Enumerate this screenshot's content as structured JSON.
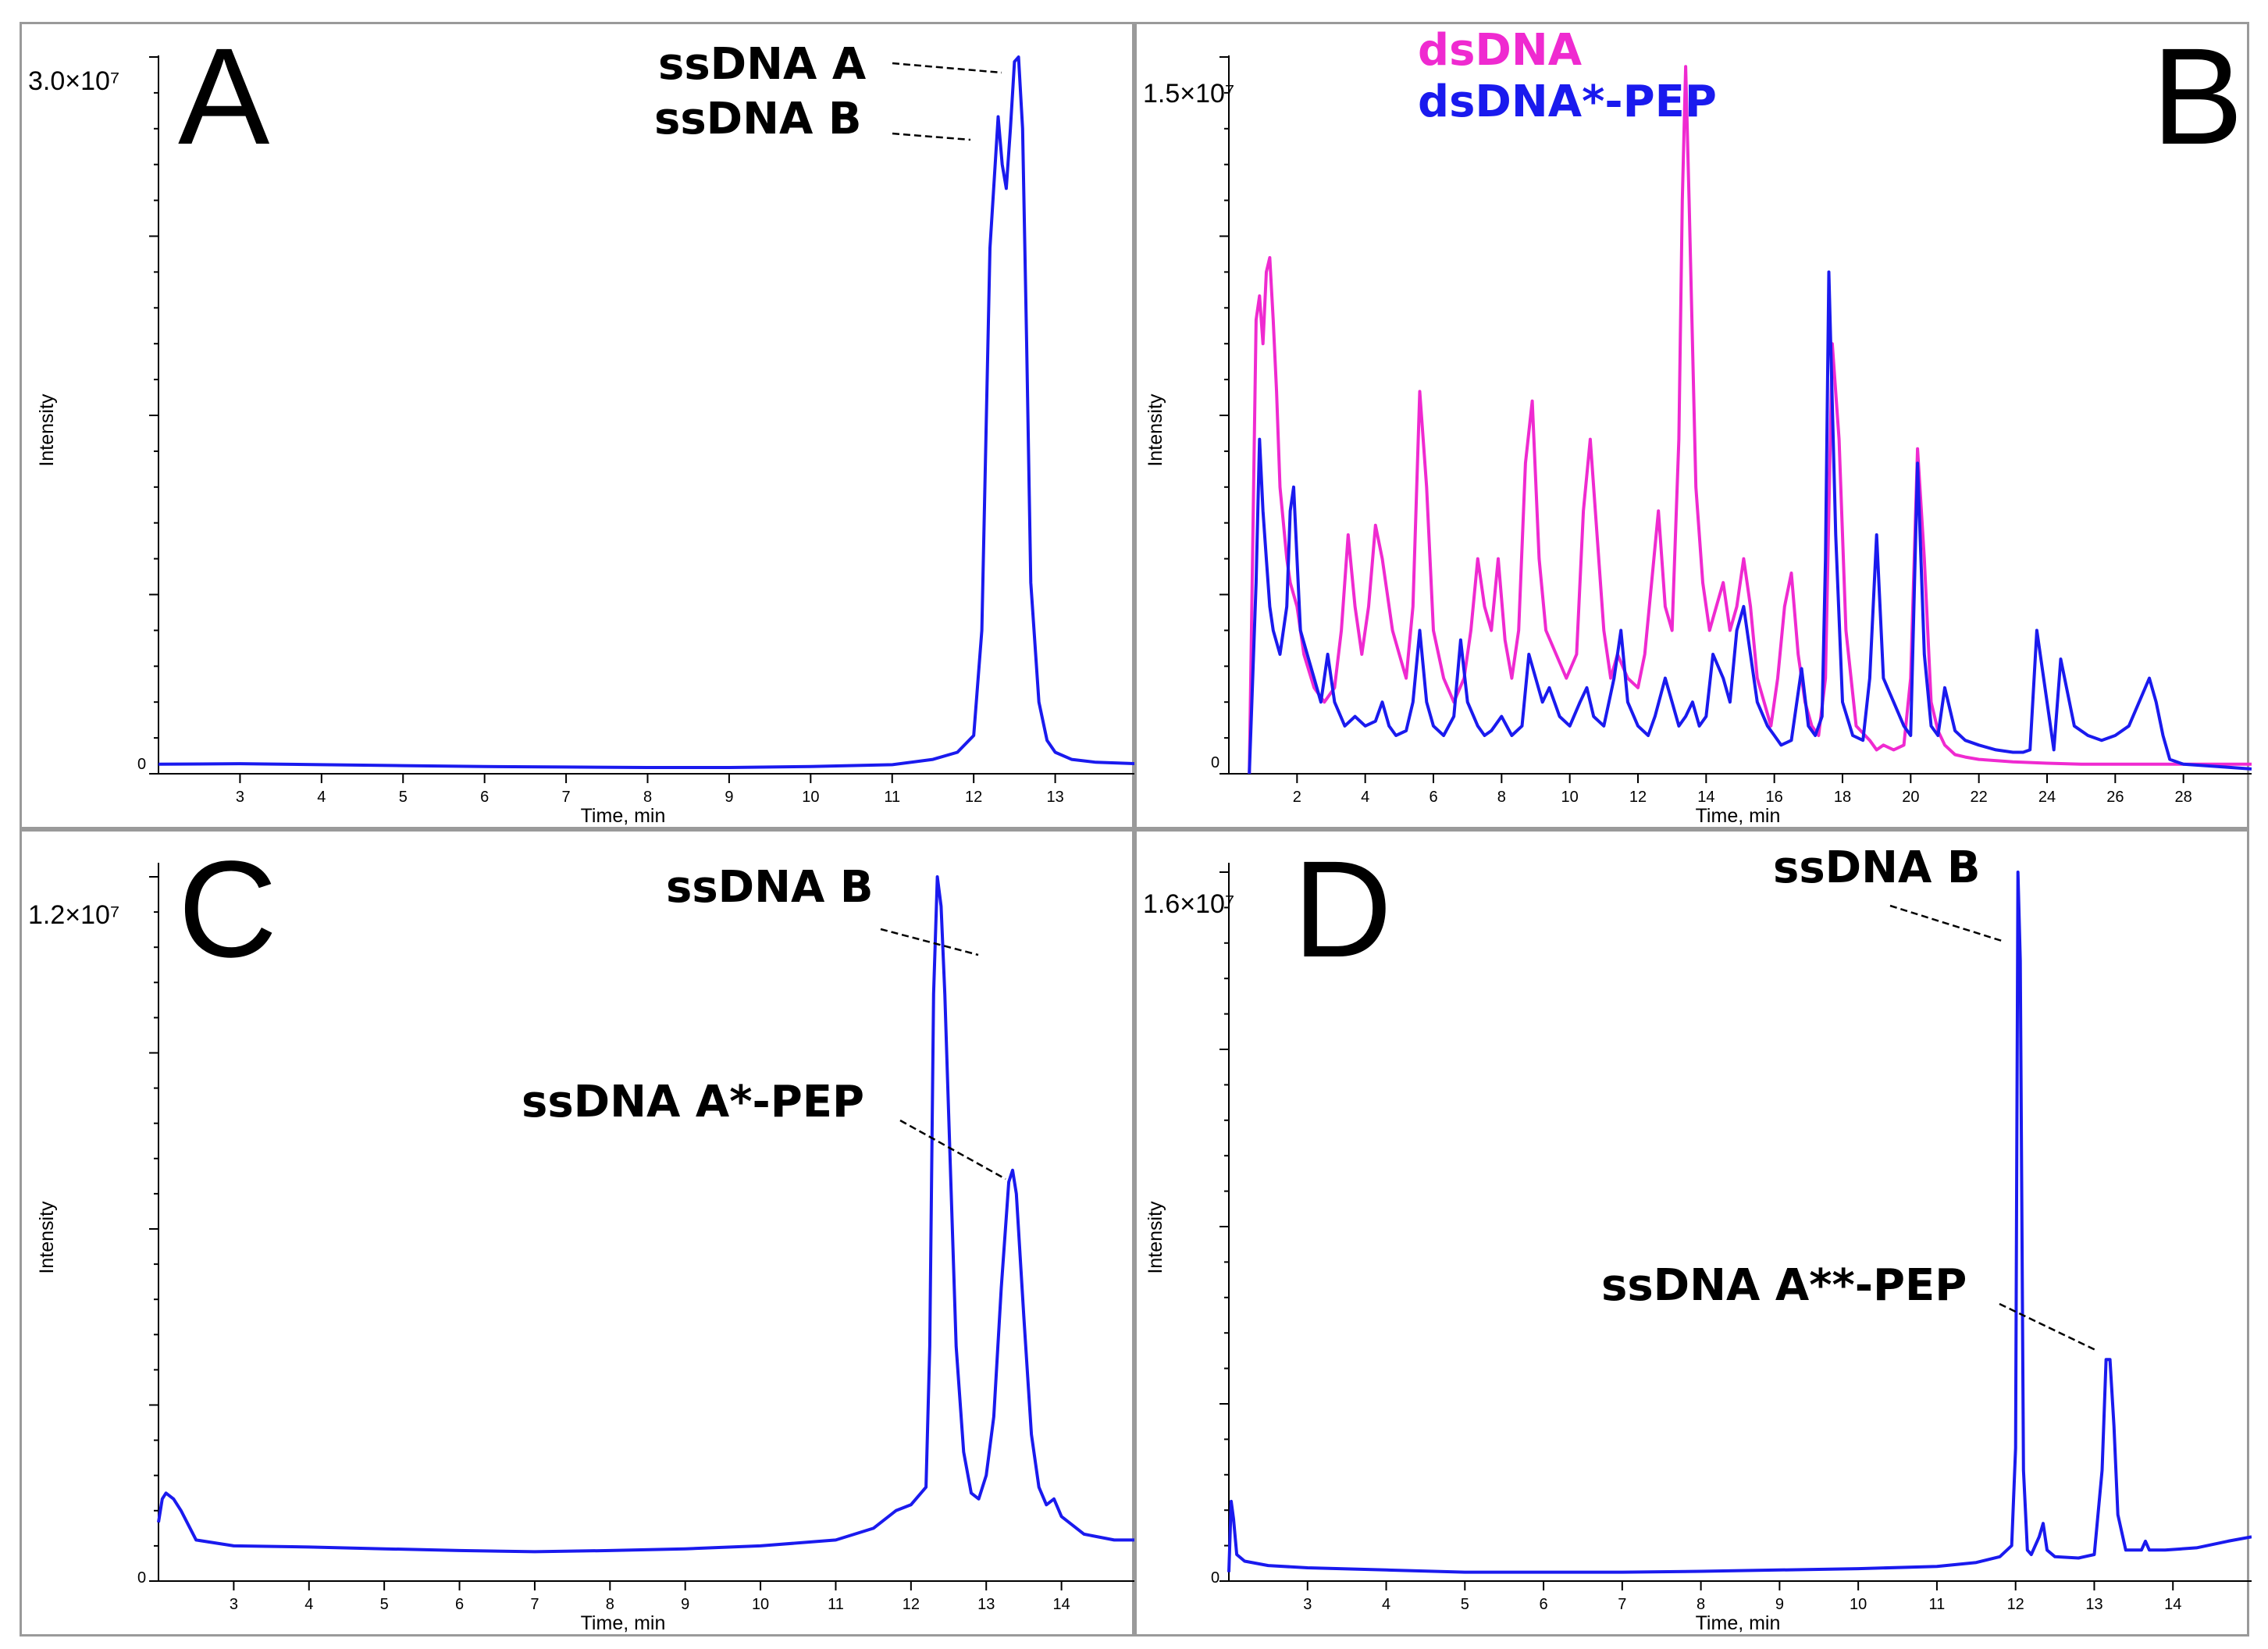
{
  "colors": {
    "blue": "#1a1aee",
    "magenta": "#ef2ad0"
  },
  "chart_data": [
    {
      "id": "A",
      "type": "line",
      "panel_label": "A",
      "xlabel": "Time, min",
      "ylabel": "Intensity",
      "ymax_label": "3.0×10⁷",
      "ymin_label": "0",
      "xlim": [
        2.0,
        14.0
      ],
      "ylim": [
        0,
        30000000
      ],
      "xticks": [
        3,
        4,
        5,
        6,
        7,
        8,
        9,
        10,
        11,
        12,
        13
      ],
      "series": [
        {
          "name": "ssDNA A/B",
          "color": "#1a1aee",
          "x": [
            2.0,
            3.0,
            4.0,
            5.0,
            6.0,
            7.0,
            8.0,
            9.0,
            10.0,
            11.0,
            11.5,
            11.8,
            12.0,
            12.1,
            12.2,
            12.3,
            12.35,
            12.4,
            12.45,
            12.5,
            12.55,
            12.6,
            12.65,
            12.7,
            12.8,
            12.9,
            13.0,
            13.2,
            13.5,
            14.0
          ],
          "y": [
            400000,
            420000,
            380000,
            340000,
            300000,
            280000,
            260000,
            260000,
            300000,
            380000,
            600000,
            900000,
            1600000,
            6000000,
            22000000,
            27500000,
            25500000,
            24500000,
            27000000,
            29800000,
            30000000,
            27000000,
            18000000,
            8000000,
            3000000,
            1400000,
            900000,
            600000,
            480000,
            420000
          ]
        }
      ],
      "annotations": [
        {
          "text": "ssDNA A",
          "x": 12.55,
          "y": 30000000
        },
        {
          "text": "ssDNA B",
          "x": 12.3,
          "y": 27500000
        }
      ]
    },
    {
      "id": "B",
      "type": "line",
      "panel_label": "B",
      "xlabel": "Time, min",
      "ylabel": "Intensity",
      "ymax_label": "1.5×10⁷",
      "ymin_label": "0",
      "xlim": [
        0.0,
        30.0
      ],
      "ylim": [
        0,
        15000000
      ],
      "xticks": [
        2,
        4,
        6,
        8,
        10,
        12,
        14,
        16,
        18,
        20,
        22,
        24,
        26,
        28
      ],
      "series": [
        {
          "name": "dsDNA",
          "color": "#ef2ad0",
          "x": [
            0.6,
            0.8,
            0.9,
            1.0,
            1.1,
            1.2,
            1.3,
            1.4,
            1.5,
            1.7,
            1.8,
            2.0,
            2.2,
            2.5,
            2.8,
            3.1,
            3.3,
            3.5,
            3.7,
            3.9,
            4.1,
            4.3,
            4.5,
            4.8,
            5.0,
            5.2,
            5.4,
            5.6,
            5.8,
            6.0,
            6.3,
            6.6,
            6.9,
            7.1,
            7.3,
            7.5,
            7.7,
            7.9,
            8.1,
            8.3,
            8.5,
            8.7,
            8.9,
            9.1,
            9.3,
            9.6,
            9.9,
            10.2,
            10.4,
            10.6,
            10.8,
            11.0,
            11.2,
            11.4,
            11.7,
            12.0,
            12.2,
            12.4,
            12.6,
            12.8,
            13.0,
            13.2,
            13.3,
            13.4,
            13.5,
            13.7,
            13.9,
            14.1,
            14.3,
            14.5,
            14.7,
            14.9,
            15.1,
            15.3,
            15.5,
            15.7,
            15.9,
            16.1,
            16.3,
            16.5,
            16.7,
            16.9,
            17.1,
            17.3,
            17.5,
            17.7,
            17.9,
            18.1,
            18.4,
            18.8,
            19.0,
            19.2,
            19.5,
            19.8,
            20.0,
            20.2,
            20.4,
            20.6,
            20.8,
            21.0,
            21.3,
            21.6,
            22.0,
            23.0,
            24.0,
            25.0,
            26.0,
            27.0,
            28.0,
            29.0,
            30.0
          ],
          "y": [
            0,
            9500000,
            10000000,
            9000000,
            10500000,
            10800000,
            9500000,
            8000000,
            6000000,
            4500000,
            4000000,
            3500000,
            2500000,
            1800000,
            1500000,
            1800000,
            3000000,
            5000000,
            3500000,
            2500000,
            3500000,
            5200000,
            4500000,
            3000000,
            2500000,
            2000000,
            3500000,
            8000000,
            6000000,
            3000000,
            2000000,
            1500000,
            2000000,
            3000000,
            4500000,
            3500000,
            3000000,
            4500000,
            2800000,
            2000000,
            3000000,
            6500000,
            7800000,
            4500000,
            3000000,
            2500000,
            2000000,
            2500000,
            5500000,
            7000000,
            5000000,
            3000000,
            2000000,
            2500000,
            2000000,
            1800000,
            2500000,
            4000000,
            5500000,
            3500000,
            3000000,
            7000000,
            12000000,
            14800000,
            12000000,
            6000000,
            4000000,
            3000000,
            3500000,
            4000000,
            3000000,
            3500000,
            4500000,
            3500000,
            2000000,
            1500000,
            1000000,
            2000000,
            3500000,
            4200000,
            2500000,
            1500000,
            1000000,
            800000,
            2000000,
            9000000,
            7000000,
            3000000,
            1000000,
            700000,
            500000,
            600000,
            500000,
            600000,
            2000000,
            6800000,
            4500000,
            1500000,
            900000,
            600000,
            400000,
            350000,
            300000,
            250000,
            220000,
            200000,
            200000,
            200000,
            200000,
            200000,
            200000
          ]
        },
        {
          "name": "dsDNA*-PEP",
          "color": "#1a1aee",
          "x": [
            0.6,
            0.8,
            0.9,
            1.0,
            1.1,
            1.2,
            1.3,
            1.5,
            1.7,
            1.8,
            1.9,
            2.0,
            2.1,
            2.3,
            2.5,
            2.7,
            2.9,
            3.1,
            3.4,
            3.7,
            4.0,
            4.3,
            4.5,
            4.7,
            4.9,
            5.2,
            5.4,
            5.6,
            5.8,
            6.0,
            6.3,
            6.6,
            6.8,
            7.0,
            7.3,
            7.5,
            7.7,
            8.0,
            8.3,
            8.6,
            8.8,
            9.0,
            9.2,
            9.4,
            9.7,
            10.0,
            10.3,
            10.5,
            10.7,
            11.0,
            11.3,
            11.5,
            11.7,
            12.0,
            12.3,
            12.5,
            12.8,
            13.0,
            13.2,
            13.4,
            13.6,
            13.8,
            14.0,
            14.2,
            14.5,
            14.7,
            14.9,
            15.1,
            15.3,
            15.5,
            15.8,
            16.0,
            16.2,
            16.5,
            16.8,
            17.0,
            17.2,
            17.4,
            17.5,
            17.6,
            17.8,
            18.0,
            18.3,
            18.6,
            18.8,
            19.0,
            19.2,
            19.5,
            19.8,
            20.0,
            20.2,
            20.4,
            20.6,
            20.8,
            21.0,
            21.3,
            21.6,
            22.0,
            22.5,
            23.0,
            23.3,
            23.5,
            23.7,
            24.0,
            24.2,
            24.4,
            24.8,
            25.2,
            25.6,
            26.0,
            26.4,
            26.7,
            27.0,
            27.2,
            27.4,
            27.6,
            28.0,
            29.0,
            30.0
          ],
          "y": [
            0,
            4000000,
            7000000,
            5500000,
            4500000,
            3500000,
            3000000,
            2500000,
            3500000,
            5500000,
            6000000,
            4500000,
            3000000,
            2500000,
            2000000,
            1500000,
            2500000,
            1500000,
            1000000,
            1200000,
            1000000,
            1100000,
            1500000,
            1000000,
            800000,
            900000,
            1500000,
            3000000,
            1500000,
            1000000,
            800000,
            1200000,
            2800000,
            1500000,
            1000000,
            800000,
            900000,
            1200000,
            800000,
            1000000,
            2500000,
            2000000,
            1500000,
            1800000,
            1200000,
            1000000,
            1500000,
            1800000,
            1200000,
            1000000,
            2000000,
            3000000,
            1500000,
            1000000,
            800000,
            1200000,
            2000000,
            1500000,
            1000000,
            1200000,
            1500000,
            1000000,
            1200000,
            2500000,
            2000000,
            1500000,
            3000000,
            3500000,
            2500000,
            1500000,
            1000000,
            800000,
            600000,
            700000,
            2200000,
            1000000,
            800000,
            1200000,
            4500000,
            10500000,
            5000000,
            1500000,
            800000,
            700000,
            2000000,
            5000000,
            2000000,
            1500000,
            1000000,
            800000,
            6500000,
            2500000,
            1000000,
            800000,
            1800000,
            900000,
            700000,
            600000,
            500000,
            450000,
            450000,
            500000,
            3000000,
            1500000,
            500000,
            2400000,
            1000000,
            800000,
            700000,
            800000,
            1000000,
            1500000,
            2000000,
            1500000,
            800000,
            300000,
            200000,
            150000,
            100000
          ]
        }
      ],
      "legend": [
        "dsDNA",
        "dsDNA*-PEP"
      ]
    },
    {
      "id": "C",
      "type": "line",
      "panel_label": "C",
      "xlabel": "Time, min",
      "ylabel": "Intensity",
      "ymax_label": "1.2×10⁷",
      "ymin_label": "0",
      "xlim": [
        2.0,
        15.0
      ],
      "ylim": [
        0,
        12000000
      ],
      "xticks": [
        3,
        4,
        5,
        6,
        7,
        8,
        9,
        10,
        11,
        12,
        13,
        14
      ],
      "series": [
        {
          "name": "ssDNA B / ssDNA A*-PEP",
          "color": "#1a1aee",
          "x": [
            2.0,
            2.05,
            2.1,
            2.2,
            2.3,
            2.5,
            3.0,
            4.0,
            5.0,
            6.0,
            7.0,
            8.0,
            9.0,
            10.0,
            11.0,
            11.5,
            11.8,
            12.0,
            12.2,
            12.25,
            12.3,
            12.35,
            12.4,
            12.45,
            12.5,
            12.6,
            12.7,
            12.8,
            12.9,
            13.0,
            13.1,
            13.2,
            13.3,
            13.35,
            13.4,
            13.5,
            13.6,
            13.7,
            13.8,
            13.9,
            14.0,
            14.3,
            14.7,
            15.0
          ],
          "y": [
            1000000,
            1400000,
            1500000,
            1400000,
            1200000,
            700000,
            600000,
            580000,
            550000,
            520000,
            500000,
            520000,
            550000,
            600000,
            700000,
            900000,
            1200000,
            1300000,
            1600000,
            4000000,
            10000000,
            12000000,
            11500000,
            10000000,
            8000000,
            4000000,
            2200000,
            1500000,
            1400000,
            1800000,
            2800000,
            5000000,
            6800000,
            7000000,
            6600000,
            4500000,
            2500000,
            1600000,
            1300000,
            1400000,
            1100000,
            800000,
            700000,
            700000
          ]
        }
      ],
      "annotations": [
        {
          "text": "ssDNA B",
          "x": 12.35,
          "y": 12000000
        },
        {
          "text": "ssDNA A*-PEP",
          "x": 13.35,
          "y": 7000000
        }
      ]
    },
    {
      "id": "D",
      "type": "line",
      "panel_label": "D",
      "xlabel": "Time, min",
      "ylabel": "Intensity",
      "ymax_label": "1.6×10⁷",
      "ymin_label": "0",
      "xlim": [
        2.0,
        15.0
      ],
      "ylim": [
        0,
        16000000
      ],
      "xticks": [
        3,
        4,
        5,
        6,
        7,
        8,
        9,
        10,
        11,
        12,
        13,
        14
      ],
      "series": [
        {
          "name": "ssDNA B / ssDNA A**-PEP",
          "color": "#1a1aee",
          "x": [
            2.0,
            2.03,
            2.06,
            2.1,
            2.2,
            2.5,
            3.0,
            4.0,
            5.0,
            6.0,
            7.0,
            8.0,
            9.0,
            10.0,
            11.0,
            11.5,
            11.8,
            11.95,
            12.0,
            12.03,
            12.06,
            12.1,
            12.15,
            12.2,
            12.3,
            12.35,
            12.4,
            12.5,
            12.8,
            13.0,
            13.1,
            13.15,
            13.2,
            13.25,
            13.3,
            13.4,
            13.6,
            13.65,
            13.7,
            13.9,
            14.3,
            14.7,
            15.0
          ],
          "y": [
            200000,
            1800000,
            1400000,
            600000,
            450000,
            350000,
            300000,
            250000,
            200000,
            200000,
            200000,
            220000,
            250000,
            280000,
            330000,
            420000,
            550000,
            800000,
            3000000,
            16000000,
            14000000,
            2500000,
            700000,
            600000,
            1000000,
            1300000,
            700000,
            550000,
            520000,
            600000,
            2500000,
            5000000,
            5000000,
            3500000,
            1500000,
            700000,
            700000,
            900000,
            700000,
            700000,
            750000,
            900000,
            1000000
          ]
        }
      ],
      "annotations": [
        {
          "text": "ssDNA B",
          "x": 12.03,
          "y": 16000000
        },
        {
          "text": "ssDNA A**-PEP",
          "x": 13.2,
          "y": 5000000
        }
      ]
    }
  ]
}
